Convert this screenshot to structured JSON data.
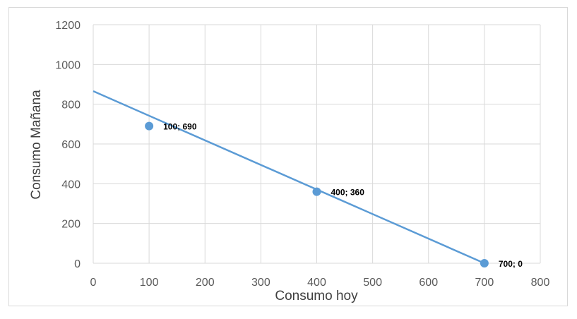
{
  "chart_data": {
    "type": "scatter",
    "title": "",
    "xlabel": "Consumo hoy",
    "ylabel": "Consumo Mañana",
    "xlim": [
      0,
      800
    ],
    "ylim": [
      0,
      1200
    ],
    "x_ticks": [
      0,
      100,
      200,
      300,
      400,
      500,
      600,
      700,
      800
    ],
    "y_ticks": [
      0,
      200,
      400,
      600,
      800,
      1000,
      1200
    ],
    "grid": true,
    "legend": "none",
    "colors": {
      "series": "#5b9bd5",
      "grid": "#d9d9d9"
    },
    "line": {
      "x": [
        0,
        700
      ],
      "y": [
        865.7,
        0
      ]
    },
    "series": [
      {
        "points": [
          {
            "x": 100,
            "y": 690,
            "label": "100; 690"
          },
          {
            "x": 400,
            "y": 360,
            "label": "400; 360"
          },
          {
            "x": 700,
            "y": 0,
            "label": "700; 0"
          }
        ]
      }
    ]
  }
}
